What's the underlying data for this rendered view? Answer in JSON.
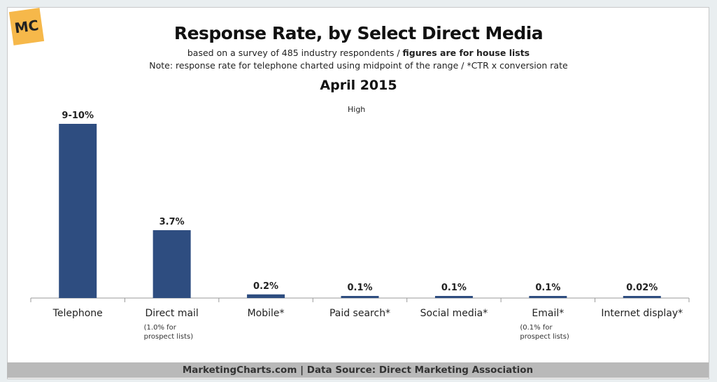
{
  "logo_text": "MC",
  "chart_data": {
    "type": "bar",
    "title": "Response Rate, by Select Direct Media",
    "subtitle_plain": "based on a survey of 485 industry respondents / ",
    "subtitle_bold": "figures are for house lists",
    "note": "Note: response rate for telephone charted using midpoint of the range / *CTR x conversion rate",
    "date": "April 2015",
    "legend": "High",
    "categories": [
      "Telephone",
      "Direct mail",
      "Mobile*",
      "Paid search*",
      "Social media*",
      "Email*",
      "Internet display*"
    ],
    "values": [
      9.5,
      3.7,
      0.2,
      0.1,
      0.1,
      0.1,
      0.02
    ],
    "data_labels": [
      "9-10%",
      "3.7%",
      "0.2%",
      "0.1%",
      "0.1%",
      "0.1%",
      "0.02%"
    ],
    "category_notes": [
      "",
      "(1.0% for|prospect lists)",
      "",
      "",
      "",
      "(0.1% for|prospect lists)",
      ""
    ],
    "ylabel": "",
    "xlabel": "",
    "ylim": [
      0,
      10
    ],
    "bar_color": "#2e4d80"
  },
  "footer": "MarketingCharts.com | Data Source: Direct Marketing Association"
}
